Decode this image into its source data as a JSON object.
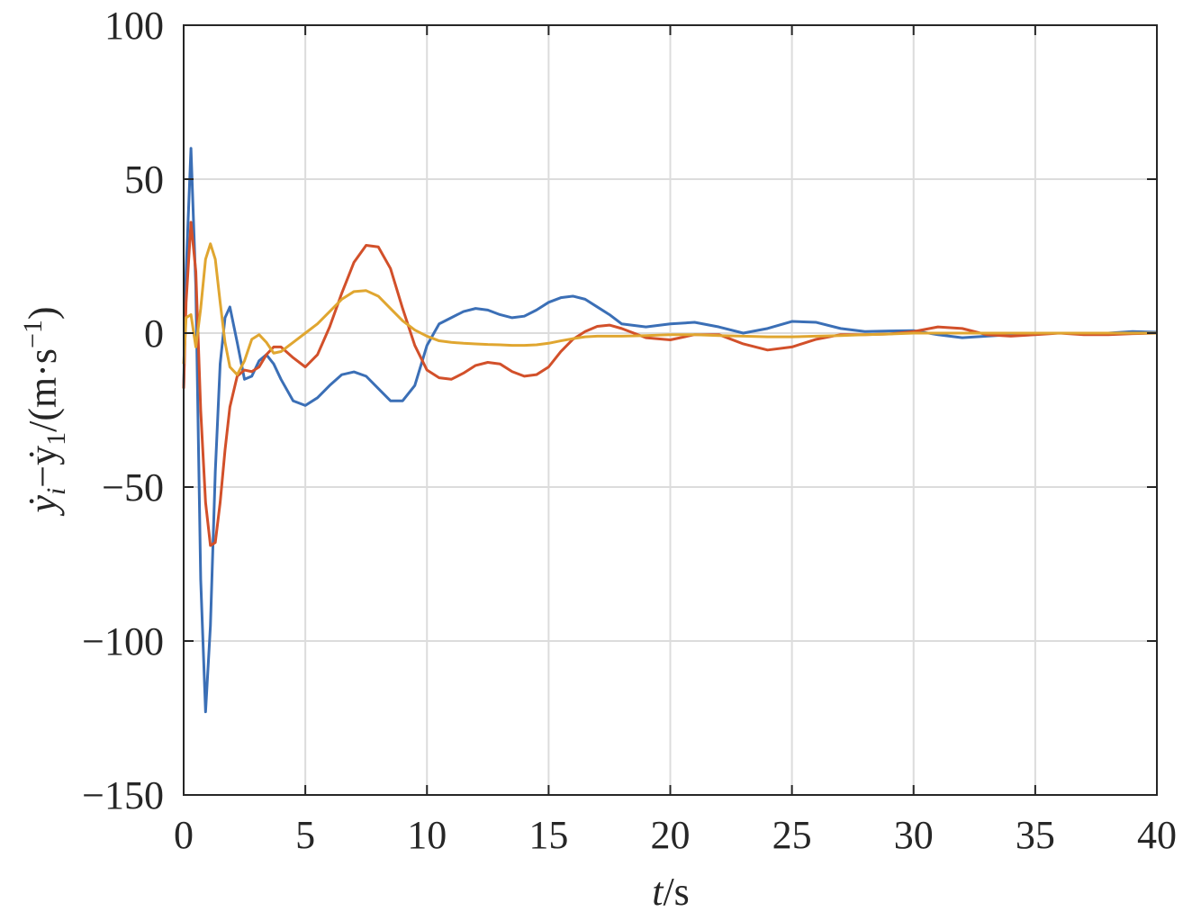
{
  "chart_data": {
    "type": "line",
    "xlabel": [
      "t",
      "/s"
    ],
    "ylabel": [
      "ẏ",
      "i",
      "−ẏ",
      "1",
      "/(m·s",
      "−1",
      ")"
    ],
    "x": [
      0,
      0.1,
      0.3,
      0.5,
      0.7,
      0.9,
      1.1,
      1.3,
      1.5,
      1.7,
      1.9,
      2.2,
      2.5,
      2.8,
      3.1,
      3.4,
      3.7,
      4.0,
      4.5,
      5,
      5.5,
      6,
      6.5,
      7,
      7.5,
      8,
      8.5,
      9,
      9.5,
      10,
      10.5,
      11,
      11.5,
      12,
      12.5,
      13,
      13.5,
      14,
      14.5,
      15,
      15.5,
      16,
      16.5,
      17,
      17.5,
      18,
      19,
      20,
      21,
      22,
      23,
      24,
      25,
      26,
      27,
      28,
      29,
      30,
      31,
      32,
      33,
      34,
      35,
      36,
      37,
      38,
      39,
      40
    ],
    "series": [
      {
        "color": "#3b6fb6",
        "values": [
          -18,
          20,
          60,
          15,
          -80,
          -123,
          -95,
          -45,
          -10,
          5,
          8.5,
          -3,
          -15,
          -14,
          -9,
          -7,
          -10,
          -15,
          -22,
          -23.5,
          -21,
          -17,
          -13.5,
          -12.6,
          -14,
          -18,
          -22,
          -22,
          -17,
          -4,
          3,
          5,
          7,
          8,
          7.5,
          6,
          5,
          5.5,
          7.5,
          10,
          11.5,
          12,
          11,
          8.5,
          6,
          3,
          2,
          3,
          3.5,
          2,
          0,
          1.5,
          3.8,
          3.5,
          1.5,
          0.5,
          0.7,
          0.8,
          -0.5,
          -1.5,
          -1,
          -0.5,
          0,
          0,
          0,
          0,
          0.5,
          0.3
        ]
      },
      {
        "color": "#d2502a",
        "values": [
          -18,
          10,
          36,
          20,
          -25,
          -55,
          -69,
          -68,
          -55,
          -38,
          -24,
          -14,
          -12,
          -12.5,
          -11,
          -7,
          -4.5,
          -4.5,
          -8,
          -11,
          -7,
          2,
          13,
          23,
          28.5,
          28,
          21,
          8,
          -4,
          -12,
          -14.5,
          -15,
          -13,
          -10.5,
          -9.5,
          -10,
          -12.5,
          -14,
          -13.5,
          -11,
          -6,
          -2,
          0.5,
          2.2,
          2.6,
          1.5,
          -1.5,
          -2.2,
          -0.5,
          -0.5,
          -3.5,
          -5.5,
          -4.5,
          -2,
          -0.5,
          -0.5,
          -0.3,
          0.5,
          2,
          1.5,
          -0.5,
          -1,
          -0.5,
          0,
          -0.5,
          -0.5,
          -0.2,
          0
        ]
      },
      {
        "color": "#e0a630",
        "values": [
          -10,
          5,
          6,
          -4.5,
          8,
          24,
          29,
          24,
          10,
          -3,
          -11,
          -13.5,
          -9,
          -2,
          -0.5,
          -3,
          -6.5,
          -6,
          -3,
          0,
          3,
          7,
          11,
          13.5,
          13.8,
          12,
          8,
          4,
          1,
          -1,
          -2.5,
          -3,
          -3.3,
          -3.5,
          -3.7,
          -3.8,
          -4,
          -4,
          -3.8,
          -3.3,
          -2.5,
          -1.8,
          -1.2,
          -1,
          -1,
          -1,
          -0.8,
          -0.5,
          -0.5,
          -0.8,
          -1,
          -1.2,
          -1.2,
          -1,
          -0.8,
          -0.5,
          -0.3,
          0,
          0,
          0,
          0,
          0,
          0,
          0,
          0,
          0,
          0,
          0
        ]
      }
    ],
    "xlim": [
      0,
      40
    ],
    "ylim": [
      -150,
      100
    ],
    "xticks": [
      0,
      5,
      10,
      15,
      20,
      25,
      30,
      35,
      40
    ],
    "yticks": [
      {
        "value": -150,
        "label": "−150"
      },
      {
        "value": -100,
        "label": "−100"
      },
      {
        "value": -50,
        "label": "−50"
      },
      0,
      50,
      100
    ],
    "grid": true
  }
}
